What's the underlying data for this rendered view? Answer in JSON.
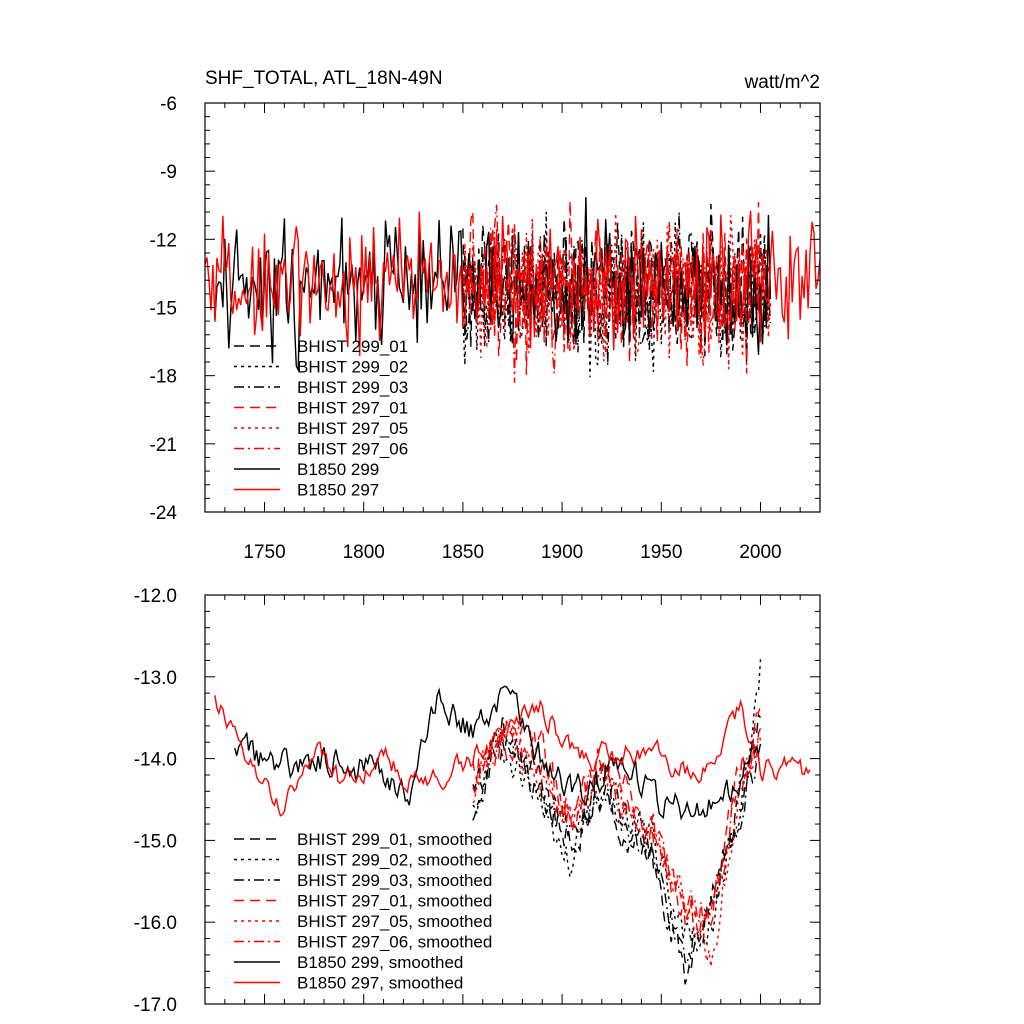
{
  "chart_data": [
    {
      "id": "top",
      "type": "line",
      "title": "SHF_TOTAL, ATL_18N-49N",
      "units": "watt/m^2",
      "xlim": [
        1720,
        2030
      ],
      "ylim": [
        -24,
        -6
      ],
      "xticks": [
        1750,
        1800,
        1850,
        1900,
        1950,
        2000
      ],
      "xtick_labels": [
        "1750",
        "1800",
        "1850",
        "1900",
        "1950",
        "2000"
      ],
      "yticks": [
        -6,
        -9,
        -12,
        -15,
        -18,
        -21,
        -24
      ],
      "ytick_labels": [
        "-6",
        "-9",
        "-12",
        "-15",
        "-18",
        "-21",
        "-24"
      ],
      "legend_position": "lower-left",
      "series": [
        {
          "name": "BHIST 299_01",
          "color": "#000000",
          "dash": "long",
          "start": 1850,
          "end": 2005,
          "mean": -14.2,
          "amp": 4.5,
          "seed": 11
        },
        {
          "name": "BHIST 299_02",
          "color": "#000000",
          "dash": "dot",
          "start": 1850,
          "end": 2005,
          "mean": -14.3,
          "amp": 4.5,
          "seed": 12
        },
        {
          "name": "BHIST 299_03",
          "color": "#000000",
          "dash": "dashdot",
          "start": 1850,
          "end": 2005,
          "mean": -14.2,
          "amp": 4.5,
          "seed": 13
        },
        {
          "name": "BHIST 297_01",
          "color": "#ff0000",
          "dash": "long",
          "start": 1850,
          "end": 2005,
          "mean": -14.1,
          "amp": 4.5,
          "seed": 14
        },
        {
          "name": "BHIST 297_05",
          "color": "#ff0000",
          "dash": "dot",
          "start": 1850,
          "end": 2005,
          "mean": -14.2,
          "amp": 4.5,
          "seed": 15
        },
        {
          "name": "BHIST 297_06",
          "color": "#ff0000",
          "dash": "dashdot",
          "start": 1850,
          "end": 2005,
          "mean": -14.1,
          "amp": 4.5,
          "seed": 16
        },
        {
          "name": "B1850 299",
          "color": "#000000",
          "dash": "solid",
          "start": 1725,
          "end": 2005,
          "mean": -14.0,
          "amp": 4.2,
          "seed": 17
        },
        {
          "name": "B1850 297",
          "color": "#ff0000",
          "dash": "solid",
          "start": 1720,
          "end": 2030,
          "mean": -13.9,
          "amp": 3.8,
          "seed": 18
        }
      ]
    },
    {
      "id": "bottom",
      "type": "line",
      "title": "",
      "xlim": [
        1720,
        2030
      ],
      "ylim": [
        -17.0,
        -12.0
      ],
      "xticks": [
        1750,
        1800,
        1850,
        1900,
        1950,
        2000
      ],
      "yticks": [
        -12.0,
        -13.0,
        -14.0,
        -15.0,
        -16.0,
        -17.0
      ],
      "ytick_labels": [
        "-12.0",
        "-13.0",
        "-14.0",
        "-15.0",
        "-16.0",
        "-17.0"
      ],
      "legend_position": "lower-left",
      "series": [
        {
          "name": "BHIST 299_01, smoothed",
          "color": "#000000",
          "dash": "long",
          "start": 1855,
          "end": 2000,
          "knots": [
            [
              1855,
              -14.6
            ],
            [
              1870,
              -13.7
            ],
            [
              1890,
              -14.3
            ],
            [
              1905,
              -15.0
            ],
            [
              1920,
              -14.4
            ],
            [
              1945,
              -15.2
            ],
            [
              1962,
              -16.6
            ],
            [
              1975,
              -15.8
            ],
            [
              1990,
              -14.4
            ],
            [
              2000,
              -13.6
            ]
          ],
          "amp": 0.5,
          "seed": 21
        },
        {
          "name": "BHIST 299_02, smoothed",
          "color": "#000000",
          "dash": "dot",
          "start": 1855,
          "end": 2000,
          "knots": [
            [
              1855,
              -14.5
            ],
            [
              1870,
              -13.8
            ],
            [
              1890,
              -14.5
            ],
            [
              1905,
              -15.2
            ],
            [
              1920,
              -14.4
            ],
            [
              1945,
              -15.0
            ],
            [
              1962,
              -16.2
            ],
            [
              1975,
              -16.0
            ],
            [
              1990,
              -14.6
            ],
            [
              2000,
              -12.8
            ]
          ],
          "amp": 0.5,
          "seed": 22
        },
        {
          "name": "BHIST 299_03, smoothed",
          "color": "#000000",
          "dash": "dashdot",
          "start": 1855,
          "end": 2000,
          "knots": [
            [
              1855,
              -14.4
            ],
            [
              1870,
              -13.6
            ],
            [
              1890,
              -14.4
            ],
            [
              1905,
              -15.0
            ],
            [
              1920,
              -14.3
            ],
            [
              1945,
              -15.1
            ],
            [
              1962,
              -16.3
            ],
            [
              1975,
              -15.9
            ],
            [
              1990,
              -14.5
            ],
            [
              2000,
              -13.8
            ]
          ],
          "amp": 0.5,
          "seed": 23
        },
        {
          "name": "BHIST 297_01, smoothed",
          "color": "#ff0000",
          "dash": "long",
          "start": 1855,
          "end": 2000,
          "knots": [
            [
              1855,
              -14.2
            ],
            [
              1870,
              -13.8
            ],
            [
              1890,
              -14.0
            ],
            [
              1905,
              -14.8
            ],
            [
              1920,
              -14.0
            ],
            [
              1945,
              -14.8
            ],
            [
              1962,
              -15.9
            ],
            [
              1975,
              -16.0
            ],
            [
              1990,
              -14.2
            ],
            [
              2000,
              -13.5
            ]
          ],
          "amp": 0.5,
          "seed": 24
        },
        {
          "name": "BHIST 297_05, smoothed",
          "color": "#ff0000",
          "dash": "dot",
          "start": 1855,
          "end": 2000,
          "knots": [
            [
              1855,
              -14.4
            ],
            [
              1870,
              -13.6
            ],
            [
              1890,
              -14.2
            ],
            [
              1905,
              -14.9
            ],
            [
              1920,
              -14.2
            ],
            [
              1945,
              -15.0
            ],
            [
              1962,
              -15.7
            ],
            [
              1975,
              -16.4
            ],
            [
              1990,
              -14.3
            ],
            [
              2000,
              -13.6
            ]
          ],
          "amp": 0.5,
          "seed": 25
        },
        {
          "name": "BHIST 297_06, smoothed",
          "color": "#ff0000",
          "dash": "dashdot",
          "start": 1855,
          "end": 2000,
          "knots": [
            [
              1855,
              -14.3
            ],
            [
              1870,
              -13.7
            ],
            [
              1890,
              -14.1
            ],
            [
              1905,
              -14.8
            ],
            [
              1920,
              -14.1
            ],
            [
              1945,
              -14.9
            ],
            [
              1962,
              -15.8
            ],
            [
              1975,
              -15.9
            ],
            [
              1990,
              -14.2
            ],
            [
              2000,
              -13.6
            ]
          ],
          "amp": 0.5,
          "seed": 26
        },
        {
          "name": "B1850 299, smoothed",
          "color": "#000000",
          "dash": "solid",
          "start": 1735,
          "end": 2000,
          "knots": [
            [
              1735,
              -13.9
            ],
            [
              1760,
              -14.1
            ],
            [
              1785,
              -14.0
            ],
            [
              1810,
              -14.2
            ],
            [
              1825,
              -14.4
            ],
            [
              1838,
              -13.2
            ],
            [
              1855,
              -13.7
            ],
            [
              1870,
              -13.2
            ],
            [
              1890,
              -14.0
            ],
            [
              1910,
              -14.4
            ],
            [
              1930,
              -14.0
            ],
            [
              1950,
              -14.6
            ],
            [
              1970,
              -14.6
            ],
            [
              1985,
              -14.4
            ],
            [
              2000,
              -13.7
            ]
          ],
          "amp": 0.4,
          "seed": 27
        },
        {
          "name": "B1850 297, smoothed",
          "color": "#ff0000",
          "dash": "solid",
          "start": 1725,
          "end": 2025,
          "knots": [
            [
              1725,
              -13.3
            ],
            [
              1740,
              -14.0
            ],
            [
              1760,
              -14.6
            ],
            [
              1775,
              -13.8
            ],
            [
              1790,
              -14.4
            ],
            [
              1810,
              -14.0
            ],
            [
              1830,
              -14.3
            ],
            [
              1850,
              -14.1
            ],
            [
              1870,
              -13.6
            ],
            [
              1890,
              -13.4
            ],
            [
              1910,
              -14.0
            ],
            [
              1930,
              -13.9
            ],
            [
              1950,
              -14.0
            ],
            [
              1965,
              -14.2
            ],
            [
              1980,
              -13.9
            ],
            [
              1990,
              -13.4
            ],
            [
              2000,
              -14.2
            ],
            [
              2015,
              -14.0
            ],
            [
              2025,
              -14.2
            ]
          ],
          "amp": 0.3,
          "seed": 28
        }
      ]
    }
  ]
}
